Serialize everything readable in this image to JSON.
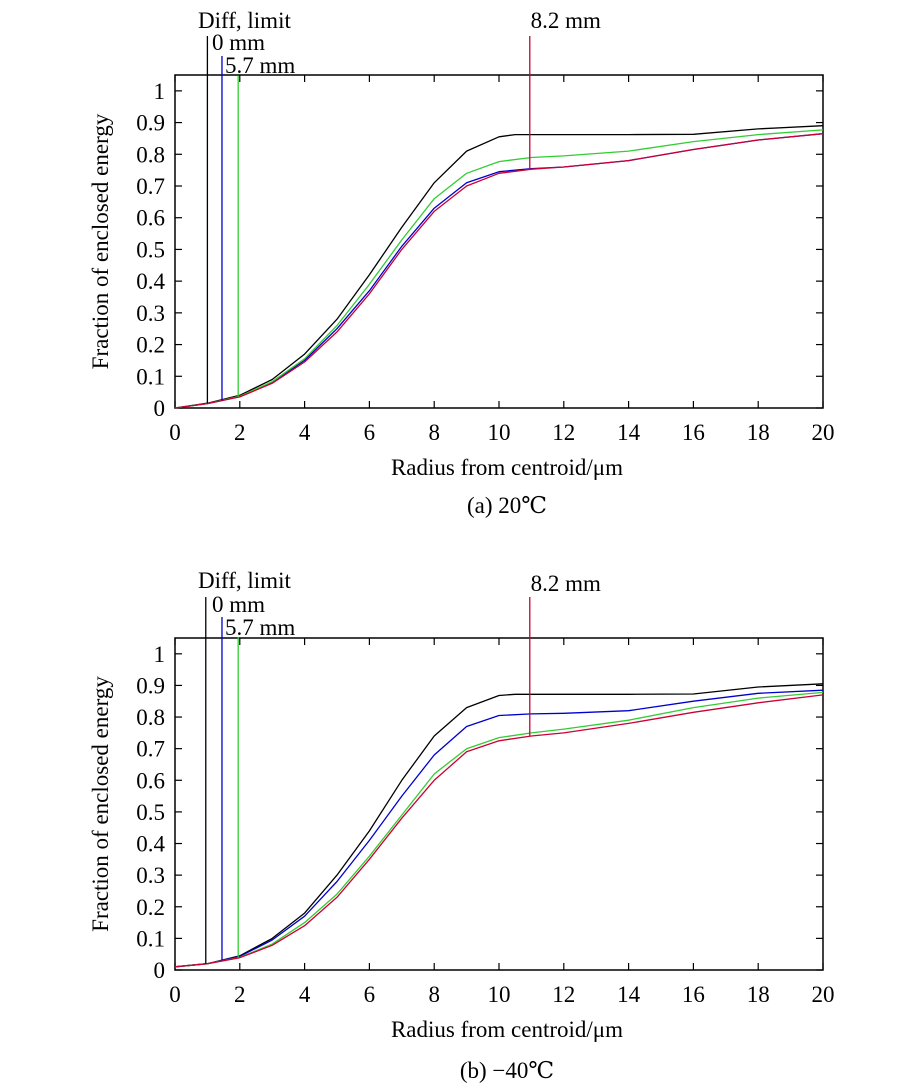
{
  "chart_data": [
    {
      "type": "line",
      "caption": "(a) 20℃",
      "xlabel": "Radius from centroid/μm",
      "ylabel": "Fraction of enclosed energy",
      "xlim": [
        0,
        20
      ],
      "ylim": [
        0,
        1.05
      ],
      "xticks": [
        "0",
        "2",
        "4",
        "6",
        "8",
        "10",
        "12",
        "14",
        "16",
        "18",
        "20"
      ],
      "yticks": [
        "0",
        "0.1",
        "0.2",
        "0.3",
        "0.4",
        "0.5",
        "0.6",
        "0.7",
        "0.8",
        "0.9",
        "1"
      ],
      "grid": false,
      "series": [
        {
          "name": "Diff, limit",
          "color": "#000000",
          "marker_x": 1.0,
          "x": [
            0,
            1,
            2,
            3,
            4,
            5,
            6,
            7,
            8,
            9,
            10,
            10.5,
            11,
            12,
            14,
            16,
            18,
            20
          ],
          "y": [
            0,
            0.015,
            0.04,
            0.09,
            0.17,
            0.28,
            0.42,
            0.57,
            0.71,
            0.81,
            0.855,
            0.862,
            0.862,
            0.862,
            0.862,
            0.863,
            0.88,
            0.89
          ]
        },
        {
          "name": "0 mm",
          "color": "#0000cc",
          "marker_x": 1.45,
          "x": [
            0,
            1,
            2,
            3,
            4,
            5,
            6,
            7,
            8,
            9,
            10,
            11,
            12,
            14,
            16,
            18,
            20
          ],
          "y": [
            0,
            0.014,
            0.036,
            0.08,
            0.15,
            0.25,
            0.37,
            0.51,
            0.63,
            0.71,
            0.745,
            0.755,
            0.76,
            0.78,
            0.815,
            0.845,
            0.865
          ]
        },
        {
          "name": "5.7 mm",
          "color": "#33cc33",
          "marker_x": 1.95,
          "x": [
            0,
            1,
            2,
            3,
            4,
            5,
            6,
            7,
            8,
            9,
            10,
            11,
            12,
            14,
            16,
            18,
            20
          ],
          "y": [
            0,
            0.014,
            0.037,
            0.083,
            0.155,
            0.26,
            0.39,
            0.53,
            0.66,
            0.74,
            0.777,
            0.79,
            0.795,
            0.81,
            0.84,
            0.862,
            0.877
          ]
        },
        {
          "name": "8.2 mm",
          "color": "#cc0033",
          "marker_x": 10.95,
          "x": [
            0,
            1,
            2,
            3,
            4,
            5,
            6,
            7,
            8,
            9,
            10,
            11,
            12,
            14,
            16,
            18,
            20
          ],
          "y": [
            0,
            0.014,
            0.035,
            0.078,
            0.145,
            0.24,
            0.36,
            0.5,
            0.62,
            0.7,
            0.74,
            0.753,
            0.76,
            0.78,
            0.815,
            0.845,
            0.865
          ]
        }
      ]
    },
    {
      "type": "line",
      "caption": "(b) −40℃",
      "xlabel": "Radius from centroid/μm",
      "ylabel": "Fraction of enclosed energy",
      "xlim": [
        0,
        20
      ],
      "ylim": [
        0,
        1.05
      ],
      "xticks": [
        "0",
        "2",
        "4",
        "6",
        "8",
        "10",
        "12",
        "14",
        "16",
        "18",
        "20"
      ],
      "yticks": [
        "0",
        "0.1",
        "0.2",
        "0.3",
        "0.4",
        "0.5",
        "0.6",
        "0.7",
        "0.8",
        "0.9",
        "1"
      ],
      "grid": false,
      "series": [
        {
          "name": "Diff, limit",
          "color": "#000000",
          "marker_x": 0.95,
          "x": [
            0,
            1,
            2,
            3,
            4,
            5,
            6,
            7,
            8,
            9,
            10,
            10.5,
            11,
            12,
            14,
            16,
            18,
            20
          ],
          "y": [
            0.01,
            0.02,
            0.045,
            0.1,
            0.18,
            0.3,
            0.44,
            0.6,
            0.74,
            0.83,
            0.868,
            0.872,
            0.872,
            0.872,
            0.872,
            0.873,
            0.895,
            0.905
          ]
        },
        {
          "name": "0 mm",
          "color": "#0000cc",
          "marker_x": 1.45,
          "x": [
            0,
            1,
            2,
            3,
            4,
            5,
            6,
            7,
            8,
            9,
            10,
            11,
            12,
            14,
            16,
            18,
            20
          ],
          "y": [
            0.01,
            0.02,
            0.043,
            0.095,
            0.17,
            0.28,
            0.41,
            0.55,
            0.68,
            0.77,
            0.805,
            0.81,
            0.812,
            0.82,
            0.85,
            0.875,
            0.885
          ]
        },
        {
          "name": "5.7 mm",
          "color": "#33cc33",
          "marker_x": 1.95,
          "x": [
            0,
            1,
            2,
            3,
            4,
            5,
            6,
            7,
            8,
            9,
            10,
            11,
            12,
            14,
            16,
            18,
            20
          ],
          "y": [
            0.01,
            0.02,
            0.04,
            0.082,
            0.15,
            0.24,
            0.36,
            0.49,
            0.62,
            0.7,
            0.735,
            0.75,
            0.762,
            0.79,
            0.83,
            0.86,
            0.878
          ]
        },
        {
          "name": "8.2 mm",
          "color": "#cc0033",
          "marker_x": 10.95,
          "x": [
            0,
            1,
            2,
            3,
            4,
            5,
            6,
            7,
            8,
            9,
            10,
            11,
            12,
            14,
            16,
            18,
            20
          ],
          "y": [
            0.01,
            0.02,
            0.039,
            0.078,
            0.14,
            0.23,
            0.35,
            0.48,
            0.6,
            0.69,
            0.725,
            0.74,
            0.75,
            0.78,
            0.815,
            0.845,
            0.87
          ]
        }
      ]
    }
  ]
}
